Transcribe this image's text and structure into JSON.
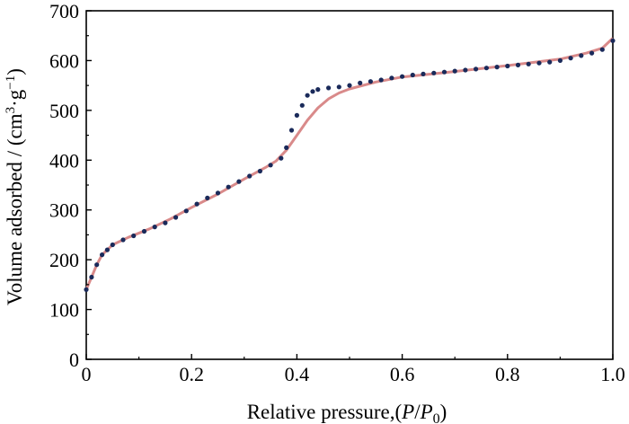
{
  "chart_data": {
    "type": "line",
    "xlabel_parts": {
      "prefix": "Relative pressure,(",
      "p": "P",
      "slash": "/",
      "p0": "P",
      "sub0": "0",
      "close": ")"
    },
    "ylabel_parts": {
      "prefix": "Volume adsorbed / (cm",
      "sup3": "3",
      "dot": "·g",
      "supm1": "−1",
      "close": ")"
    },
    "xlim": [
      0,
      1
    ],
    "ylim": [
      0,
      700
    ],
    "x_ticks": [
      0,
      0.2,
      0.4,
      0.6,
      0.8,
      1.0
    ],
    "x_tick_labels": [
      "0",
      "0.2",
      "0.4",
      "0.6",
      "0.8",
      "1.0"
    ],
    "y_ticks": [
      0,
      100,
      200,
      300,
      400,
      500,
      600,
      700
    ],
    "y_tick_labels": [
      "0",
      "100",
      "200",
      "300",
      "400",
      "500",
      "600",
      "700"
    ],
    "grid": false,
    "series": [
      {
        "style": "solid-line",
        "color": "#d98a8a",
        "x": [
          0.0,
          0.01,
          0.02,
          0.03,
          0.05,
          0.08,
          0.12,
          0.16,
          0.2,
          0.25,
          0.3,
          0.34,
          0.36,
          0.38,
          0.4,
          0.42,
          0.44,
          0.46,
          0.48,
          0.5,
          0.55,
          0.6,
          0.7,
          0.8,
          0.9,
          0.95,
          0.98,
          1.0
        ],
        "y": [
          140,
          165,
          190,
          210,
          230,
          245,
          262,
          282,
          305,
          332,
          362,
          385,
          398,
          420,
          450,
          480,
          505,
          523,
          535,
          543,
          557,
          567,
          578,
          590,
          603,
          615,
          625,
          645
        ]
      },
      {
        "style": "dots",
        "color": "#1a2a5a",
        "x": [
          0.0,
          0.01,
          0.02,
          0.03,
          0.04,
          0.05,
          0.07,
          0.09,
          0.11,
          0.13,
          0.15,
          0.17,
          0.19,
          0.21,
          0.23,
          0.25,
          0.27,
          0.29,
          0.31,
          0.33,
          0.35,
          0.37,
          0.38,
          0.39,
          0.4,
          0.41,
          0.42,
          0.43,
          0.44,
          0.46,
          0.48,
          0.5,
          0.52,
          0.54,
          0.56,
          0.58,
          0.6,
          0.62,
          0.64,
          0.66,
          0.68,
          0.7,
          0.72,
          0.74,
          0.76,
          0.78,
          0.8,
          0.82,
          0.84,
          0.86,
          0.88,
          0.9,
          0.92,
          0.94,
          0.96,
          0.98,
          1.0
        ],
        "y": [
          140,
          165,
          190,
          210,
          220,
          230,
          240,
          248,
          257,
          266,
          274,
          285,
          298,
          312,
          324,
          334,
          346,
          357,
          368,
          378,
          390,
          404,
          425,
          460,
          490,
          510,
          530,
          538,
          542,
          545,
          547,
          550,
          555,
          558,
          561,
          565,
          568,
          571,
          573,
          575,
          577,
          579,
          581,
          583,
          585,
          587,
          589,
          591,
          593,
          595,
          597,
          600,
          605,
          610,
          615,
          622,
          640
        ]
      }
    ]
  }
}
